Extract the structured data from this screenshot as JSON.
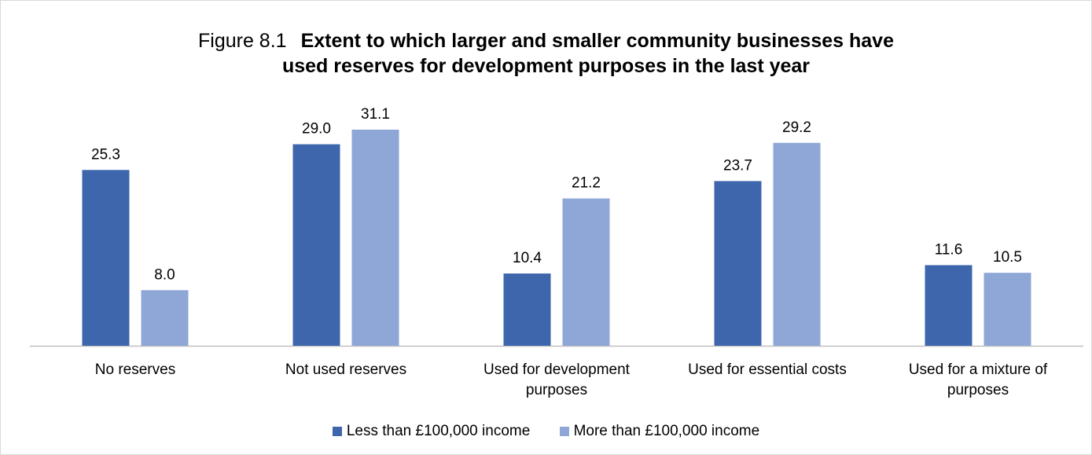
{
  "chart_data": {
    "type": "bar",
    "title_prefix": "Figure 8.1",
    "title_line1": "Extent to which larger and smaller community businesses have",
    "title_line2": "used reserves for development purposes in the last year",
    "categories": [
      [
        "No reserves"
      ],
      [
        "Not used reserves"
      ],
      [
        "Used for development",
        "purposes"
      ],
      [
        "Used for essential costs"
      ],
      [
        "Used for a mixture of",
        "purposes"
      ]
    ],
    "series": [
      {
        "name": "Less than £100,000 income",
        "color": "#3d66ac",
        "values": [
          25.3,
          29.0,
          10.4,
          23.7,
          11.6
        ],
        "labels": [
          "25.3",
          "29.0",
          "10.4",
          "23.7",
          "11.6"
        ]
      },
      {
        "name": "More than £100,000 income",
        "color": "#8fa7d6",
        "values": [
          8.0,
          31.1,
          21.2,
          29.2,
          10.5
        ],
        "labels": [
          "8.0",
          "31.1",
          "21.2",
          "29.2",
          "10.5"
        ]
      }
    ],
    "ylim": [
      0,
      31.1
    ],
    "grid": false,
    "legend_position": "bottom"
  }
}
